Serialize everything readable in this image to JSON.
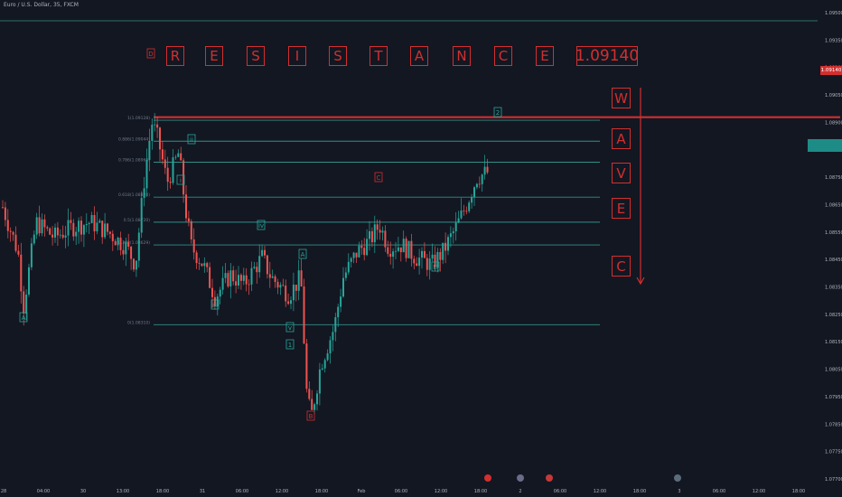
{
  "header": {
    "title": "Euro / U.S. Dollar, 35, FXCM"
  },
  "chart_data": {
    "type": "candlestick",
    "price_axis": {
      "ticks": [
        "1.09500",
        "1.09350",
        "1.09200",
        "1.09050",
        "1.08900",
        "1.08800",
        "1.08750",
        "1.08650",
        "1.08550",
        "1.08450",
        "1.08350",
        "1.08250",
        "1.08150",
        "1.08050",
        "1.07950",
        "1.07850",
        "1.07750",
        "1.07700"
      ],
      "highlight_label": "1.09140"
    },
    "time_axis": {
      "labels": [
        "28",
        "04:00",
        "30",
        "13:00",
        "18:00",
        "31",
        "06:00",
        "12:00",
        "18:00",
        "Feb",
        "06:00",
        "12:00",
        "18:00",
        "2",
        "06:00",
        "12:00",
        "18:00",
        "3",
        "06:00",
        "12:00",
        "18:00"
      ]
    },
    "resistance": {
      "letters": [
        "R",
        "E",
        "S",
        "I",
        "S",
        "T",
        "A",
        "N",
        "C",
        "E"
      ],
      "value": "1.09140",
      "tag": "D"
    },
    "wave_label": [
      "W",
      "A",
      "V",
      "E",
      "C"
    ],
    "fib_levels": [
      {
        "label": "1(1.09128)",
        "price": 1.09128
      },
      {
        "label": "0.886(1.09044)",
        "price": 1.09044
      },
      {
        "label": "0.786(1.08960)",
        "price": 1.0896
      },
      {
        "label": "0.618(1.08820)",
        "price": 1.0882
      },
      {
        "label": "0.5(1.08720)",
        "price": 1.0872
      },
      {
        "label": "0.382(1.08629)",
        "price": 1.08629
      },
      {
        "label": "0(1.08310)",
        "price": 1.0831
      }
    ],
    "wave_markers": [
      "A",
      "D",
      "i",
      "ii",
      "iii",
      "iv",
      "v",
      "1",
      "B",
      "C",
      "D",
      "2",
      "A"
    ],
    "colors": {
      "background": "#131722",
      "up": "#26a69a",
      "down": "#ef5350",
      "resistance": "#d32f2f",
      "fib": "#2f8f87"
    }
  }
}
